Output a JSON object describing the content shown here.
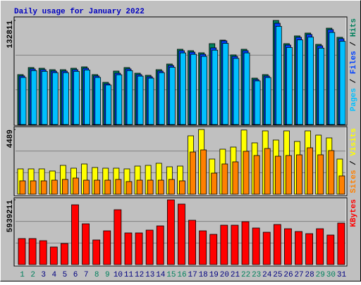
{
  "chart_data": {
    "type": "bar",
    "title": "Daily usage for January 2022",
    "categories": [
      "1",
      "2",
      "3",
      "4",
      "5",
      "6",
      "7",
      "8",
      "9",
      "10",
      "11",
      "12",
      "13",
      "14",
      "15",
      "16",
      "17",
      "18",
      "19",
      "20",
      "21",
      "22",
      "23",
      "24",
      "25",
      "26",
      "27",
      "28",
      "29",
      "30",
      "31"
    ],
    "category_colors": [
      "#00805c",
      "#00805c",
      "#000080",
      "#000080",
      "#000080",
      "#000080",
      "#000080",
      "#00805c",
      "#00805c",
      "#000080",
      "#000080",
      "#000080",
      "#000080",
      "#000080",
      "#00805c",
      "#00805c",
      "#000080",
      "#000080",
      "#000080",
      "#000080",
      "#000080",
      "#00805c",
      "#00805c",
      "#000080",
      "#000080",
      "#000080",
      "#000080",
      "#000080",
      "#00805c",
      "#00805c",
      "#000080"
    ],
    "legend_separator": " / ",
    "panels": [
      {
        "ylim": [
          0,
          132811
        ],
        "yticks": [
          132811
        ],
        "series": [
          {
            "name": "Hits",
            "color": "#00805c",
            "values": [
              63715,
              72689,
              71792,
              69997,
              69997,
              71792,
              73587,
              63715,
              53844,
              68202,
              72689,
              65510,
              62818,
              69997,
              77176,
              96022,
              94227,
              91535,
              103201,
              107688,
              88843,
              96022,
              59228,
              63715,
              132811,
              103201,
              113072,
              116662,
              102304,
              122944,
              111278
            ]
          },
          {
            "name": "Files",
            "color": "#0040ff",
            "values": [
              62000,
              70900,
              70000,
              68200,
              68200,
              70000,
              71800,
              62000,
              52000,
              65510,
              70900,
              63700,
              61000,
              68200,
              75400,
              94200,
              92400,
              89700,
              97817,
              106791,
              87000,
              94200,
              57400,
              61900,
              129221,
              101400,
              111300,
              114900,
              100500,
              121100,
              109500
            ]
          },
          {
            "name": "Pages",
            "color": "#00c0ff",
            "values": [
              60100,
              68800,
              67900,
              66200,
              66200,
              67900,
              69600,
              60100,
              50400,
              63500,
              68800,
              61800,
              59200,
              66200,
              73100,
              91400,
              89600,
              87000,
              94900,
              103600,
              84400,
              91400,
              55700,
              60000,
              125300,
              98400,
              108000,
              111500,
              97500,
              117500,
              106200
            ]
          }
        ]
      },
      {
        "ylim": [
          0,
          4489
        ],
        "yticks": [
          4489
        ],
        "series": [
          {
            "name": "Visits",
            "color": "#ffff00",
            "values": [
              1757,
              1757,
              1757,
              1610,
              2001,
              1806,
              2098,
              1854,
              1806,
              1806,
              1757,
              1952,
              2001,
              2147,
              1903,
              1952,
              4050,
              4489,
              2440,
              3123,
              3270,
              4450,
              3562,
              4392,
              3758,
              4392,
              3660,
              4392,
              4099,
              3904,
              2440
            ]
          },
          {
            "name": "Sites",
            "color": "#ff8000",
            "values": [
              927,
              927,
              927,
              976,
              1025,
              1122,
              976,
              976,
              976,
              1025,
              878,
              976,
              976,
              976,
              1025,
              927,
              2928,
              3074,
              1464,
              2098,
              2245,
              2977,
              2684,
              3172,
              2635,
              2684,
              2733,
              3221,
              2733,
              3026,
              1269
            ]
          }
        ]
      },
      {
        "ylim": [
          0,
          5939211
        ],
        "yticks": [
          5939211
        ],
        "series": [
          {
            "name": "KBytes",
            "color": "#ff0000",
            "values": [
              2388609,
              2388609,
              2194938,
              1613925,
              1936710,
              5487345,
              3744306,
              2259495,
              3098736,
              5035446,
              2905065,
              2905065,
              3163293,
              3550635,
              5939211,
              5551902,
              4067091,
              3098736,
              2775951,
              3615192,
              3615192,
              3937977,
              3356964,
              2969622,
              3679749,
              3292407,
              3034179,
              2840508,
              3292407,
              2711394,
              3808863
            ]
          }
        ]
      }
    ]
  }
}
